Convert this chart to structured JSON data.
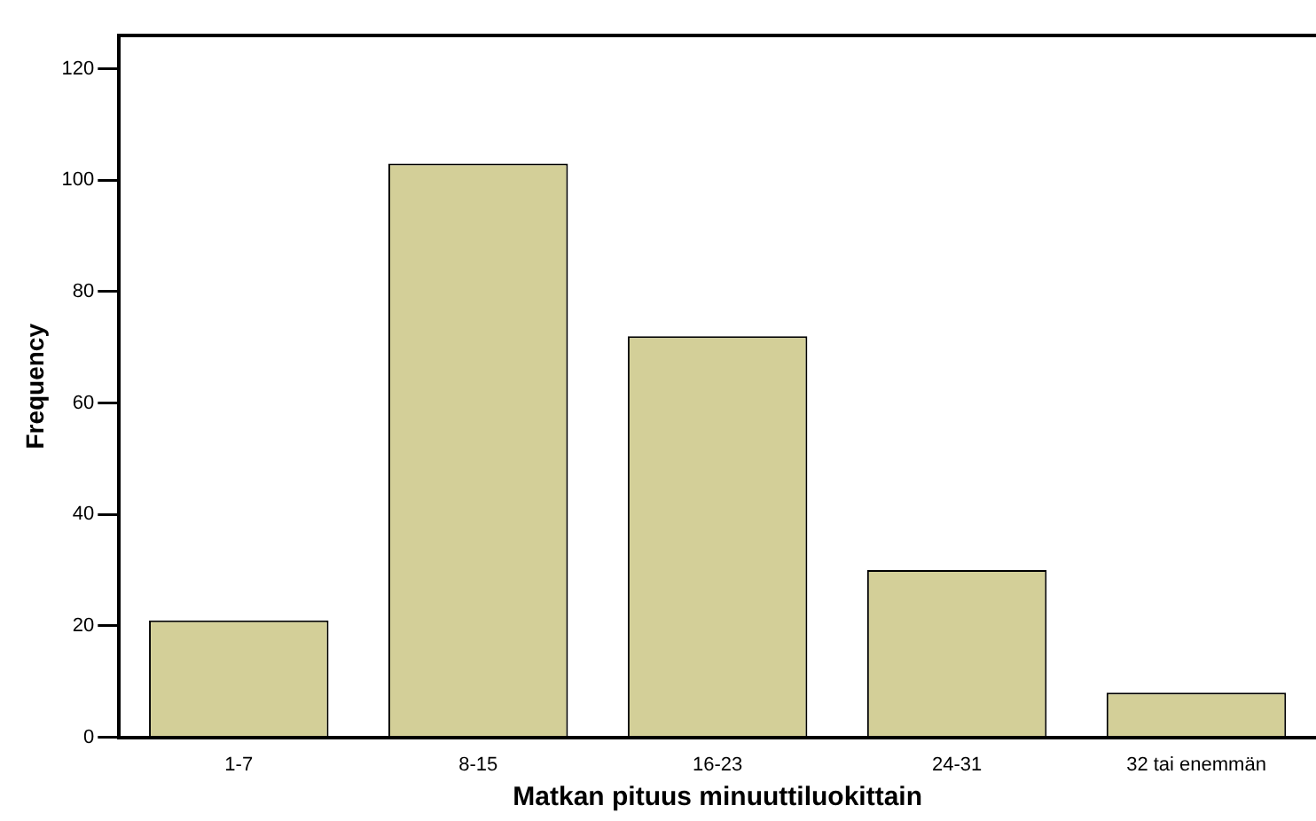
{
  "chart_data": {
    "type": "bar",
    "xlabel": "Matkan pituus minuuttiluokittain",
    "ylabel": "Frequency",
    "categories": [
      "1-7",
      "8-15",
      "16-23",
      "24-31",
      "32 tai enemmän"
    ],
    "values": [
      21,
      103,
      72,
      30,
      8
    ],
    "color": "#d3cf98",
    "ylim": [
      0,
      126
    ],
    "yticks": [
      0,
      20,
      40,
      60,
      80,
      100,
      120
    ],
    "grid": false,
    "legend": false
  }
}
